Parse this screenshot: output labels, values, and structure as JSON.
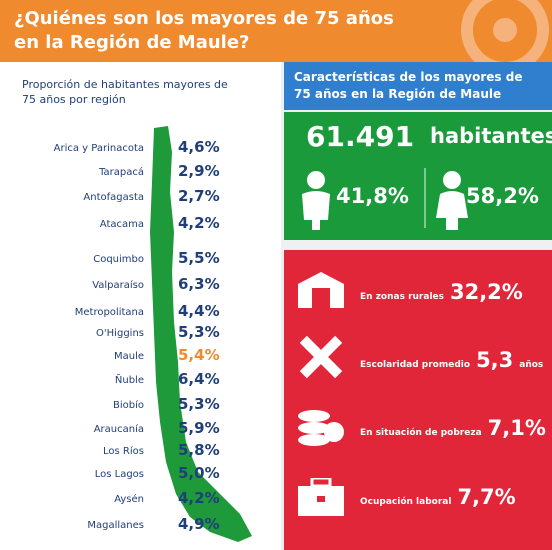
{
  "header": {
    "title_line1": "¿Quiénes son los mayores de 75 años",
    "title_line2": "en la Región de Maule?"
  },
  "left": {
    "subtitle_line1": "Proporción de habitantes mayores de",
    "subtitle_line2": "75 años por región",
    "regions": [
      {
        "name": "Arica y Parinacota",
        "value": "4,6%"
      },
      {
        "name": "Tarapacá",
        "value": "2,9%"
      },
      {
        "name": "Antofagasta",
        "value": "2,7%"
      },
      {
        "name": "Atacama",
        "value": "4,2%"
      },
      {
        "name": "Coquimbo",
        "value": "5,5%"
      },
      {
        "name": "Valparaíso",
        "value": "6,3%"
      },
      {
        "name": "Metropolitana",
        "value": "4,4%"
      },
      {
        "name": "O'Higgins",
        "value": "5,3%"
      },
      {
        "name": "Maule",
        "value": "5,4%",
        "highlighted": true
      },
      {
        "name": "Ñuble",
        "value": "6,4%"
      },
      {
        "name": "Biobío",
        "value": "5,3%"
      },
      {
        "name": "Araucanía",
        "value": "5,9%"
      },
      {
        "name": "Los Ríos",
        "value": "5,8%"
      },
      {
        "name": "Los Lagos",
        "value": "5,0%"
      },
      {
        "name": "Aysén",
        "value": "4,2%"
      },
      {
        "name": "Magallanes",
        "value": "4,9%"
      }
    ]
  },
  "right": {
    "title_line1": "Características de los mayores de",
    "title_line2": "75 años en la Región de Maule",
    "total": "61.491",
    "total_unit": "habitantes",
    "men": "41,8%",
    "women": "58,2%",
    "stats": [
      {
        "label": "En zonas rurales",
        "value": "32,2%"
      },
      {
        "label": "Escolaridad promedio",
        "value": "5,3",
        "unit": "años"
      },
      {
        "label": "En situación de pobreza",
        "value": "7,1%"
      },
      {
        "label": "Ocupación laboral",
        "value": "7,7%"
      }
    ]
  }
}
